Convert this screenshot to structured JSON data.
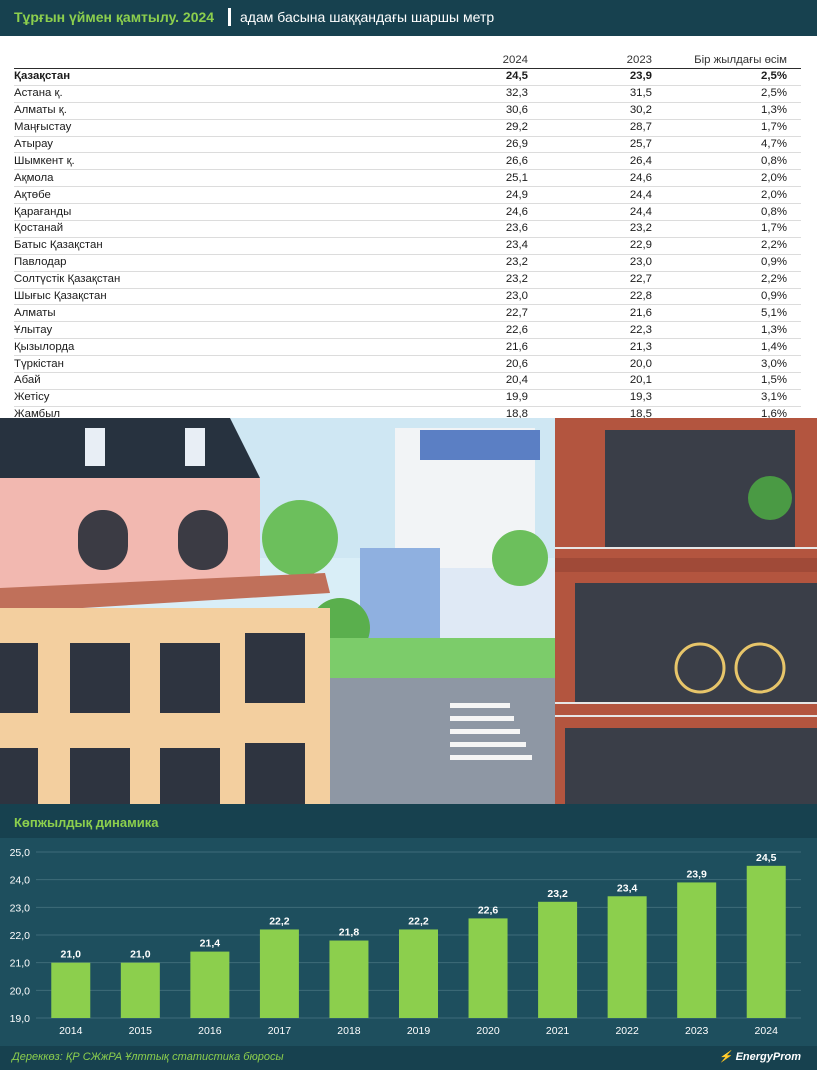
{
  "header": {
    "title": "Тұрғын үймен қамтылу. 2024",
    "subtitle": "адам басына шаққандағы шаршы метр"
  },
  "table": {
    "columns": [
      "",
      "2024",
      "2023",
      "Бір жылдағы өсім"
    ],
    "rows": [
      {
        "region": "Қазақстан",
        "v2024": "24,5",
        "v2023": "23,9",
        "growth": "2,5%",
        "bold": true
      },
      {
        "region": "Астана қ.",
        "v2024": "32,3",
        "v2023": "31,5",
        "growth": "2,5%"
      },
      {
        "region": "Алматы қ.",
        "v2024": "30,6",
        "v2023": "30,2",
        "growth": "1,3%"
      },
      {
        "region": "Маңғыстау",
        "v2024": "29,2",
        "v2023": "28,7",
        "growth": "1,7%"
      },
      {
        "region": "Атырау",
        "v2024": "26,9",
        "v2023": "25,7",
        "growth": "4,7%"
      },
      {
        "region": "Шымкент қ.",
        "v2024": "26,6",
        "v2023": "26,4",
        "growth": "0,8%"
      },
      {
        "region": "Ақмола",
        "v2024": "25,1",
        "v2023": "24,6",
        "growth": "2,0%"
      },
      {
        "region": "Ақтөбе",
        "v2024": "24,9",
        "v2023": "24,4",
        "growth": "2,0%"
      },
      {
        "region": "Қарағанды",
        "v2024": "24,6",
        "v2023": "24,4",
        "growth": "0,8%"
      },
      {
        "region": "Қостанай",
        "v2024": "23,6",
        "v2023": "23,2",
        "growth": "1,7%"
      },
      {
        "region": "Батыс Қазақстан",
        "v2024": "23,4",
        "v2023": "22,9",
        "growth": "2,2%"
      },
      {
        "region": "Павлодар",
        "v2024": "23,2",
        "v2023": "23,0",
        "growth": "0,9%"
      },
      {
        "region": "Солтүстік Қазақстан",
        "v2024": "23,2",
        "v2023": "22,7",
        "growth": "2,2%"
      },
      {
        "region": "Шығыс Қазақстан",
        "v2024": "23,0",
        "v2023": "22,8",
        "growth": "0,9%"
      },
      {
        "region": "Алматы",
        "v2024": "22,7",
        "v2023": "21,6",
        "growth": "5,1%"
      },
      {
        "region": "Ұлытау",
        "v2024": "22,6",
        "v2023": "22,3",
        "growth": "1,3%"
      },
      {
        "region": "Қызылорда",
        "v2024": "21,6",
        "v2023": "21,3",
        "growth": "1,4%"
      },
      {
        "region": "Түркістан",
        "v2024": "20,6",
        "v2023": "20,0",
        "growth": "3,0%"
      },
      {
        "region": "Абай",
        "v2024": "20,4",
        "v2023": "20,1",
        "growth": "1,5%"
      },
      {
        "region": "Жетісу",
        "v2024": "19,9",
        "v2023": "19,3",
        "growth": "3,1%"
      },
      {
        "region": "Жамбыл",
        "v2024": "18,8",
        "v2023": "18,5",
        "growth": "1,6%"
      }
    ]
  },
  "chart_data": {
    "type": "bar",
    "title": "Көпжылдық динамика",
    "categories": [
      "2014",
      "2015",
      "2016",
      "2017",
      "2018",
      "2019",
      "2020",
      "2021",
      "2022",
      "2023",
      "2024"
    ],
    "values": [
      21.0,
      21.0,
      21.4,
      22.2,
      21.8,
      22.2,
      22.6,
      23.2,
      23.4,
      23.9,
      24.5
    ],
    "value_labels": [
      "21,0",
      "21,0",
      "21,4",
      "22,2",
      "21,8",
      "22,2",
      "22,6",
      "23,2",
      "23,4",
      "23,9",
      "24,5"
    ],
    "ylim": [
      19.0,
      25.0
    ],
    "yticks": [
      19.0,
      20.0,
      21.0,
      22.0,
      23.0,
      24.0,
      25.0
    ],
    "ytick_labels": [
      "19,0",
      "20,0",
      "21,0",
      "22,0",
      "23,0",
      "24,0",
      "25,0"
    ],
    "grid": true,
    "bar_color": "#8ccf4d",
    "xlabel": "",
    "ylabel": ""
  },
  "footer": {
    "source": "Дереккөз: ҚР СЖжРА Ұлттық статистика бюросы",
    "brand": "EnergyProm"
  },
  "colors": {
    "background": "#17414f",
    "chart_panel": "#1e4f5e",
    "accent_green": "#8ccf4d"
  }
}
